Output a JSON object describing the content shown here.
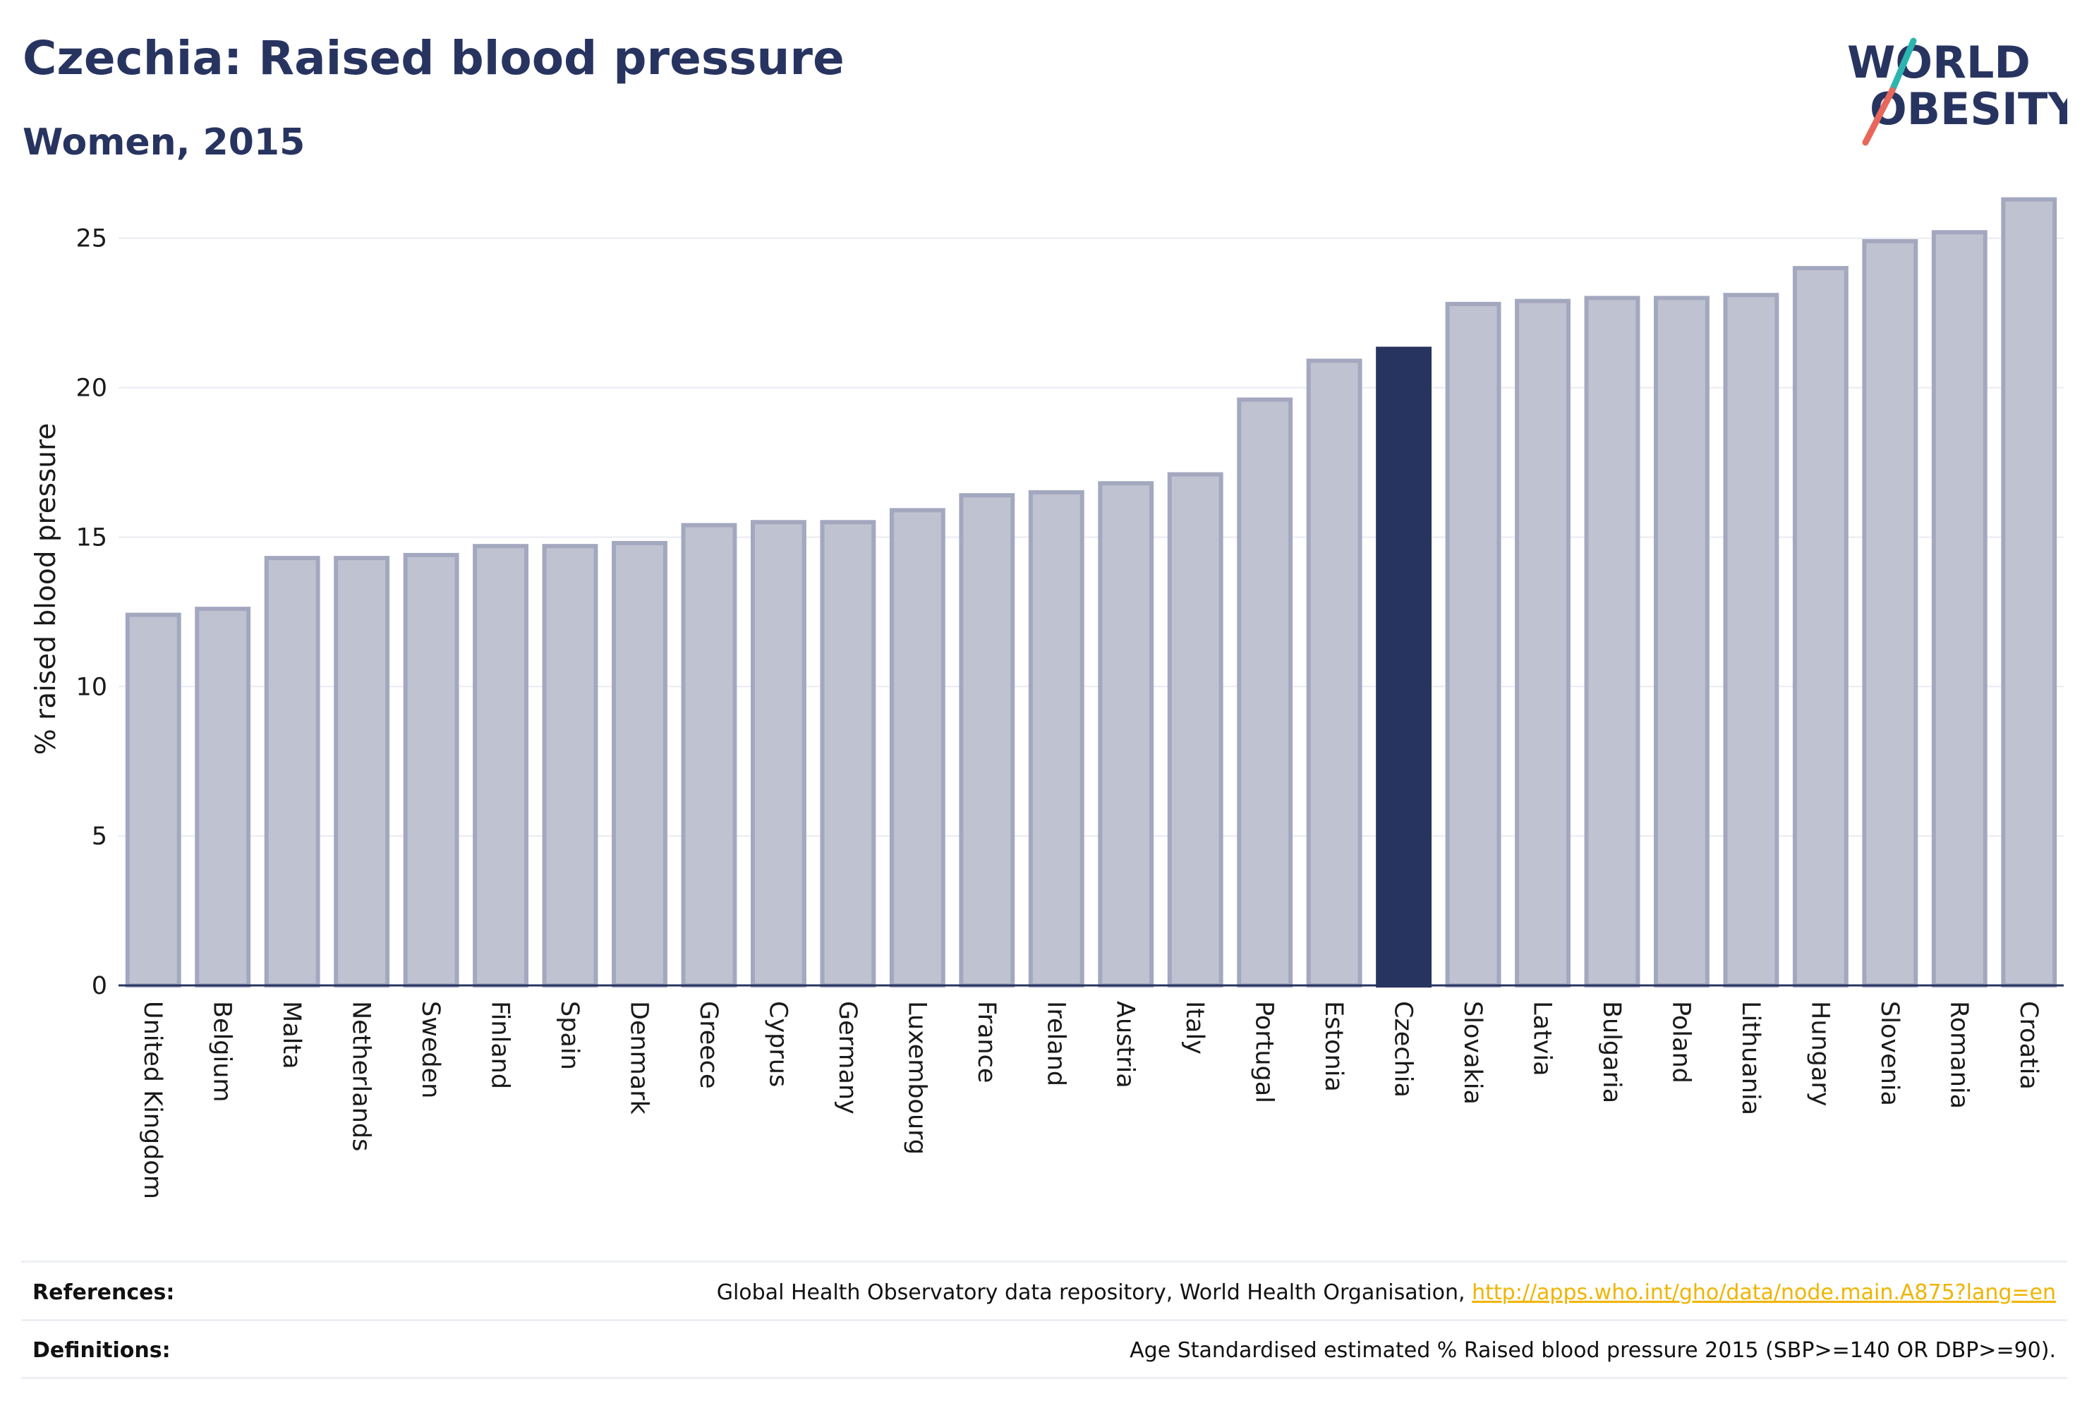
{
  "header": {
    "title": "Czechia: Raised blood pressure",
    "subtitle": "Women, 2015"
  },
  "logo": {
    "line1": "WORLD",
    "line2": "OBESITY",
    "accent_teal": "#2cb5b0",
    "accent_red": "#e8675a"
  },
  "chart_data": {
    "type": "bar",
    "ylabel": "% raised blood pressure",
    "ylim": [
      0,
      27
    ],
    "yticks": [
      0,
      5,
      10,
      15,
      20,
      25
    ],
    "grid": true,
    "categories": [
      "United Kingdom",
      "Belgium",
      "Malta",
      "Netherlands",
      "Sweden",
      "Finland",
      "Spain",
      "Denmark",
      "Greece",
      "Cyprus",
      "Germany",
      "Luxembourg",
      "France",
      "Ireland",
      "Austria",
      "Italy",
      "Portugal",
      "Estonia",
      "Czechia",
      "Slovakia",
      "Latvia",
      "Bulgaria",
      "Poland",
      "Lithuania",
      "Hungary",
      "Slovenia",
      "Romania",
      "Croatia"
    ],
    "values": [
      12.4,
      12.6,
      14.3,
      14.3,
      14.4,
      14.7,
      14.7,
      14.8,
      15.4,
      15.5,
      15.5,
      15.9,
      16.4,
      16.5,
      16.8,
      17.1,
      19.6,
      20.9,
      21.3,
      22.8,
      22.9,
      23.0,
      23.0,
      23.1,
      24.0,
      24.9,
      25.2,
      26.3
    ],
    "highlight": "Czechia",
    "colors": {
      "bar_fill": "#bfc2d0",
      "bar_stroke": "#a3a8bf",
      "highlight": "#283460"
    }
  },
  "footer": {
    "references_label": "References:",
    "references_text": "Global Health Observatory data repository, World Health Organisation,",
    "references_link": "http://apps.who.int/gho/data/node.main.A875?lang=en",
    "definitions_label": "Definitions:",
    "definitions_text": "Age Standardised estimated % Raised blood pressure 2015 (SBP>=140 OR DBP>=90)."
  }
}
